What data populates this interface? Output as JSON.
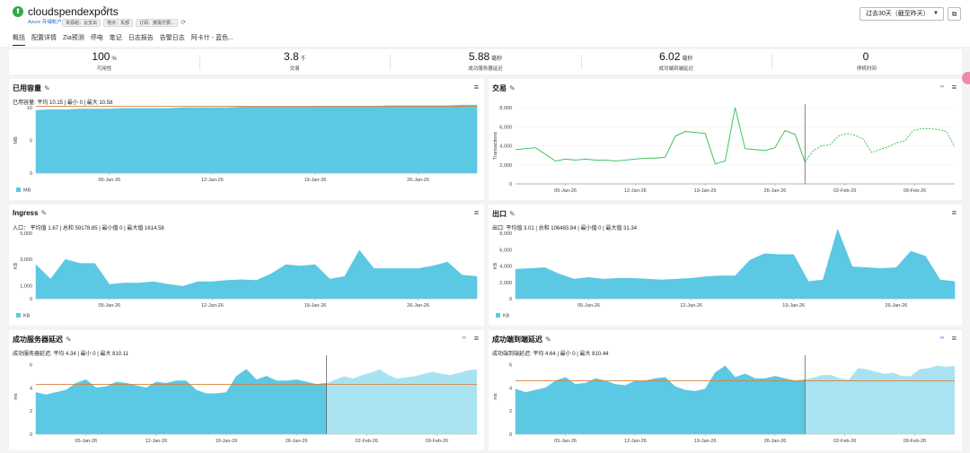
{
  "header": {
    "title": "cloudspendexports",
    "subtitle": "Azure 存储帐户",
    "chips": [
      "资源组：云支出",
      "地点：东部",
      "订阅：按需付费..."
    ],
    "tabs": [
      "概括",
      "配置详情",
      "Zia预测",
      "停电",
      "笔记",
      "日志报告",
      "告警日志",
      "阿卡什 - 蓝色..."
    ],
    "active_tab": 0,
    "time_range": "过去30天（截至昨天）"
  },
  "kpis": [
    {
      "value": "100",
      "unit": "%",
      "label": "可用性"
    },
    {
      "value": "3.8",
      "unit": "千",
      "label": "交易"
    },
    {
      "value": "5.88",
      "unit": "毫秒",
      "label": "成功服务器延迟"
    },
    {
      "value": "6.02",
      "unit": "毫秒",
      "label": "成功端到端延迟"
    },
    {
      "value": "0",
      "unit": "",
      "label": "停机时间"
    }
  ],
  "colors": {
    "area": "#5bc8e4",
    "forecast": "#a9e3f1",
    "line": "#3cc45a",
    "threshold": "#d8823c",
    "divider": "#666666"
  },
  "panels": [
    {
      "id": "used_capacity",
      "title": "已用容量",
      "stats": "已用容量:   平均 10.15  |  最小 0  |  最大 10.58",
      "has_forecast_icon": false,
      "menu": "≡",
      "chart_data": {
        "type": "area",
        "ylabel": "MB",
        "ylim": [
          0,
          10
        ],
        "yticks": [
          "0",
          "5",
          "10"
        ],
        "xticks": [
          {
            "label": "05-Jan-26",
            "x": 5
          },
          {
            "label": "12-Jan-26",
            "x": 12
          },
          {
            "label": "19-Jan-26",
            "x": 19
          },
          {
            "label": "26-Jan-26",
            "x": 26
          }
        ],
        "xlim": [
          0,
          30
        ],
        "legend": "MB",
        "threshold": 10.2,
        "values": [
          9.6,
          9.7,
          9.7,
          9.8,
          9.8,
          9.8,
          9.9,
          9.9,
          9.9,
          9.9,
          10.0,
          10.0,
          10.0,
          10.0,
          10.1,
          10.1,
          10.1,
          10.1,
          10.1,
          10.2,
          10.2,
          10.2,
          10.2,
          10.2,
          10.3,
          10.3,
          10.3,
          10.3,
          10.3,
          10.4,
          10.4
        ]
      }
    },
    {
      "id": "transactions",
      "title": "交易",
      "stats": "",
      "has_forecast_icon": true,
      "menu": "≡",
      "chart_data": {
        "type": "line",
        "ylabel": "Transactions",
        "ylim": [
          0,
          8000
        ],
        "yticks": [
          "0",
          "2,000",
          "4,000",
          "6,000",
          "8,000"
        ],
        "xticks": [
          {
            "label": "05-Jan-26",
            "x": 5
          },
          {
            "label": "12-Jan-26",
            "x": 12
          },
          {
            "label": "19-Jan-26",
            "x": 19
          },
          {
            "label": "26-Jan-26",
            "x": 26
          },
          {
            "label": "02-Feb-26",
            "x": 33
          },
          {
            "label": "09-Feb-26",
            "x": 40
          }
        ],
        "xlim": [
          0,
          44
        ],
        "forecast_start": 29,
        "threshold": 0,
        "values": [
          3600,
          3700,
          3800,
          3100,
          2400,
          2600,
          2500,
          2600,
          2500,
          2500,
          2400,
          2500,
          2600,
          2700,
          2700,
          2800,
          5000,
          5500,
          5400,
          5300,
          2100,
          2400,
          8000,
          3700,
          3600,
          3500,
          3800,
          5600,
          5200,
          2300
        ],
        "forecast": [
          2300,
          3500,
          4000,
          4100,
          5000,
          5300,
          5100,
          4700,
          3300,
          3600,
          3900,
          4300,
          4500,
          5600,
          5800,
          5800,
          5700,
          5500,
          3900
        ]
      }
    },
    {
      "id": "ingress",
      "title": "Ingress",
      "stats": "入口：   平均值 1.67  |  总和 59178.85  |  最小值 0  |  最大值 1614.58",
      "has_forecast_icon": false,
      "menu": "≡",
      "chart_data": {
        "type": "area",
        "ylabel": "KB",
        "ylim": [
          0,
          5000
        ],
        "yticks": [
          "0",
          "1,000",
          "3,000",
          "5,000"
        ],
        "ytick_values": [
          0,
          1000,
          3000,
          5000
        ],
        "xticks": [
          {
            "label": "05-Jan-26",
            "x": 5
          },
          {
            "label": "12-Jan-26",
            "x": 12
          },
          {
            "label": "19-Jan-26",
            "x": 19
          },
          {
            "label": "26-Jan-26",
            "x": 26
          }
        ],
        "xlim": [
          0,
          30
        ],
        "legend": "KB",
        "values": [
          2600,
          1500,
          3000,
          2700,
          2700,
          1100,
          1200,
          1200,
          1300,
          1100,
          950,
          1300,
          1300,
          1400,
          1450,
          1400,
          1900,
          2600,
          2500,
          2600,
          1500,
          1700,
          3700,
          2300,
          2300,
          2300,
          2300,
          2500,
          2800,
          1800,
          1700
        ]
      }
    },
    {
      "id": "egress",
      "title": "出口",
      "stats": "出口:   平均值 3.01  |  总和 106483.84  |  最小值 0  |  最大值 31.34",
      "has_forecast_icon": false,
      "menu": "≡",
      "chart_data": {
        "type": "area",
        "ylabel": "KB",
        "ylim": [
          0,
          8000
        ],
        "yticks": [
          "0",
          "2,000",
          "4,000",
          "6,000",
          "8,000"
        ],
        "xticks": [
          {
            "label": "05-Jan-26",
            "x": 5
          },
          {
            "label": "12-Jan-26",
            "x": 12
          },
          {
            "label": "19-Jan-26",
            "x": 19
          },
          {
            "label": "26-Jan-26",
            "x": 26
          }
        ],
        "xlim": [
          0,
          30
        ],
        "legend": "KB",
        "values": [
          3600,
          3700,
          3800,
          3000,
          2400,
          2600,
          2400,
          2500,
          2500,
          2400,
          2300,
          2400,
          2500,
          2700,
          2800,
          2800,
          4700,
          5500,
          5400,
          5400,
          2100,
          2300,
          8500,
          3900,
          3800,
          3700,
          3800,
          5800,
          5200,
          2300,
          2100
        ]
      }
    },
    {
      "id": "server_latency",
      "title": "成功服务器延迟",
      "stats": "成功服务器延迟:   平均 4.34  |  最小 0  |  最大 810.11",
      "has_forecast_icon": true,
      "menu": "≡",
      "chart_data": {
        "type": "area",
        "ylabel": "ms",
        "ylim": [
          0,
          6.5
        ],
        "yticks": [
          "0",
          "2",
          "4",
          "6"
        ],
        "ytick_values": [
          0,
          2,
          4,
          6
        ],
        "xticks": [
          {
            "label": "05-Jan-26",
            "x": 5
          },
          {
            "label": "12-Jan-26",
            "x": 12
          },
          {
            "label": "19-Jan-26",
            "x": 19
          },
          {
            "label": "26-Jan-26",
            "x": 26
          },
          {
            "label": "02-Feb-26",
            "x": 33
          },
          {
            "label": "09-Feb-26",
            "x": 40
          }
        ],
        "xlim": [
          0,
          44
        ],
        "forecast_start": 29,
        "threshold": 4.3,
        "values": [
          3.6,
          3.4,
          3.6,
          3.8,
          4.4,
          4.7,
          4.0,
          4.1,
          4.5,
          4.4,
          4.2,
          4.0,
          4.5,
          4.4,
          4.6,
          4.6,
          3.8,
          3.5,
          3.5,
          3.6,
          5.0,
          5.6,
          4.7,
          5.0,
          4.6,
          4.6,
          4.7,
          4.5,
          4.3,
          4.4
        ],
        "forecast": [
          4.4,
          4.7,
          5.0,
          4.8,
          5.1,
          5.3,
          5.6,
          5.1,
          4.8,
          4.9,
          5.0,
          5.2,
          5.4,
          5.2,
          5.1,
          5.3,
          5.5,
          5.6
        ]
      }
    },
    {
      "id": "e2e_latency",
      "title": "成功端到端延迟",
      "stats": "成功端到端延迟:   平均 4.64  |  最小 0  |  最大 810.44",
      "has_forecast_icon": true,
      "menu": "≡",
      "chart_data": {
        "type": "area",
        "ylabel": "ms",
        "ylim": [
          0,
          6.5
        ],
        "yticks": [
          "0",
          "2",
          "4",
          "6"
        ],
        "ytick_values": [
          0,
          2,
          4,
          6
        ],
        "xticks": [
          {
            "label": "05-Jan-26",
            "x": 5
          },
          {
            "label": "12-Jan-26",
            "x": 12
          },
          {
            "label": "19-Jan-26",
            "x": 19
          },
          {
            "label": "26-Jan-26",
            "x": 26
          },
          {
            "label": "02-Feb-26",
            "x": 33
          },
          {
            "label": "09-Feb-26",
            "x": 40
          }
        ],
        "xlim": [
          0,
          44
        ],
        "forecast_start": 29,
        "threshold": 4.6,
        "values": [
          3.9,
          3.6,
          3.8,
          4.0,
          4.6,
          4.9,
          4.3,
          4.4,
          4.8,
          4.6,
          4.3,
          4.2,
          4.6,
          4.6,
          4.8,
          4.9,
          4.1,
          3.8,
          3.7,
          3.9,
          5.3,
          5.9,
          4.9,
          5.2,
          4.8,
          4.8,
          5.0,
          4.8,
          4.6,
          4.7
        ],
        "forecast": [
          4.7,
          4.9,
          5.1,
          5.1,
          4.8,
          4.7,
          5.7,
          5.6,
          5.4,
          5.2,
          5.3,
          5.0,
          5.0,
          5.6,
          5.7,
          5.9,
          5.8,
          5.9
        ]
      }
    }
  ]
}
